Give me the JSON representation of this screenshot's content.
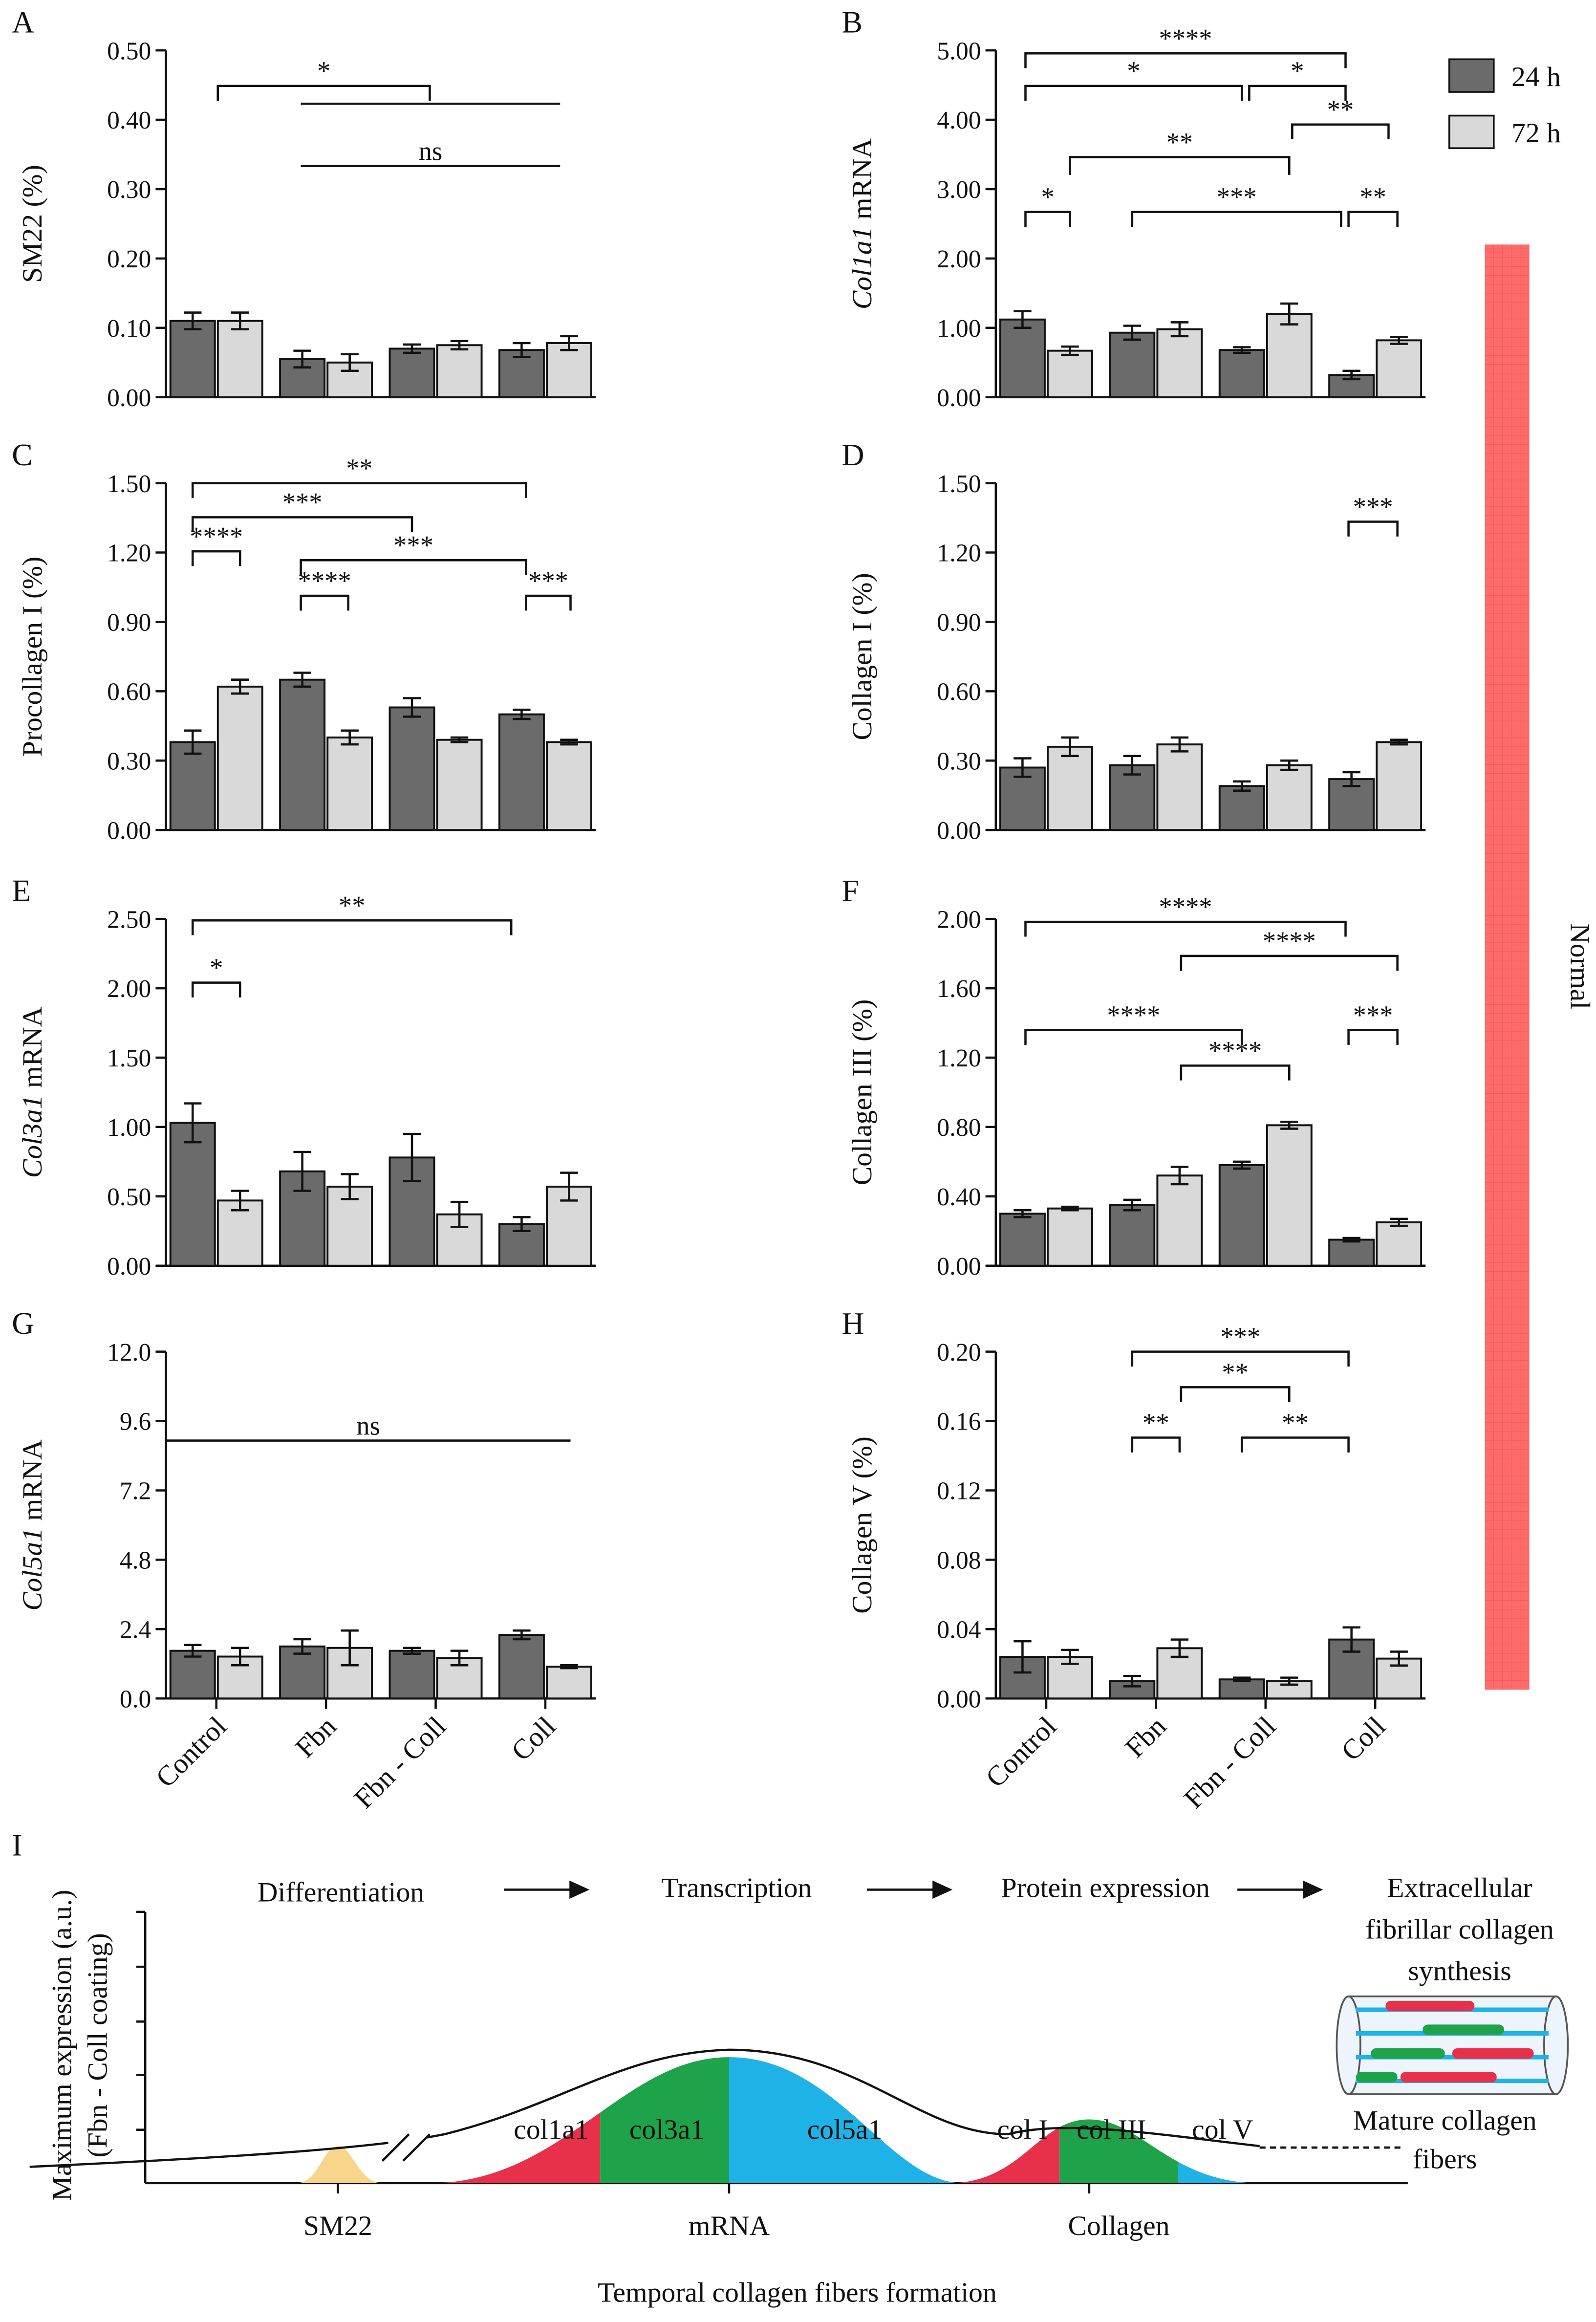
{
  "legend": [
    {
      "name": "24 h",
      "color": "#6b6b6b"
    },
    {
      "name": "72 h",
      "color": "#d9d9d9"
    }
  ],
  "categories": [
    "Control",
    "Fbn",
    "Fbn - Coll",
    "Coll"
  ],
  "side_label": "Normal",
  "chart_data": [
    {
      "type": "bar",
      "label": "A",
      "ylabel": [
        {
          "text": "SM22 (%)"
        }
      ],
      "ylim": [
        0,
        0.5
      ],
      "yticks": [
        {
          "value": 0,
          "label": "0.00"
        },
        {
          "value": 0.1,
          "label": "0.10"
        },
        {
          "value": 0.2,
          "label": "0.20"
        },
        {
          "value": 0.3,
          "label": "0.30"
        },
        {
          "value": 0.4,
          "label": "0.40"
        },
        {
          "value": 0.5,
          "label": "0.50"
        }
      ],
      "series": [
        {
          "values": [
            0.11,
            0.055,
            0.07,
            0.068
          ],
          "errors": [
            0.012,
            0.012,
            0.006,
            0.01
          ]
        },
        {
          "values": [
            0.11,
            0.05,
            0.075,
            0.078
          ],
          "errors": [
            0.012,
            0.012,
            0.006,
            0.01
          ]
        }
      ],
      "annotations": [
        "*",
        "ns"
      ]
    },
    {
      "type": "bar",
      "label": "B",
      "ylabel": [
        {
          "text": "Col1a1",
          "italic": true
        },
        {
          "text": " mRNA"
        }
      ],
      "ylim": [
        0,
        5
      ],
      "yticks": [
        {
          "value": 0,
          "label": "0.00"
        },
        {
          "value": 1,
          "label": "1.00"
        },
        {
          "value": 2,
          "label": "2.00"
        },
        {
          "value": 3,
          "label": "3.00"
        },
        {
          "value": 4,
          "label": "4.00"
        },
        {
          "value": 5,
          "label": "5.00"
        }
      ],
      "series": [
        {
          "values": [
            1.12,
            0.93,
            0.68,
            0.32
          ],
          "errors": [
            0.12,
            0.1,
            0.04,
            0.06
          ]
        },
        {
          "values": [
            0.67,
            0.98,
            1.2,
            0.82
          ],
          "errors": [
            0.06,
            0.1,
            0.15,
            0.05
          ]
        }
      ],
      "annotations": [
        "****",
        "*",
        "*",
        "**",
        "**",
        "*",
        "***",
        "**"
      ]
    },
    {
      "type": "bar",
      "label": "C",
      "ylabel": [
        {
          "text": "Procollagen I (%)"
        }
      ],
      "ylim": [
        0,
        1.5
      ],
      "yticks": [
        {
          "value": 0,
          "label": "0.00"
        },
        {
          "value": 0.3,
          "label": "0.30"
        },
        {
          "value": 0.6,
          "label": "0.60"
        },
        {
          "value": 0.9,
          "label": "0.90"
        },
        {
          "value": 1.2,
          "label": "1.20"
        },
        {
          "value": 1.5,
          "label": "1.50"
        }
      ],
      "series": [
        {
          "values": [
            0.38,
            0.65,
            0.53,
            0.5
          ],
          "errors": [
            0.05,
            0.03,
            0.04,
            0.02
          ]
        },
        {
          "values": [
            0.62,
            0.4,
            0.39,
            0.38
          ],
          "errors": [
            0.03,
            0.03,
            0.01,
            0.01
          ]
        }
      ],
      "annotations": [
        "**",
        "***",
        "****",
        "***",
        "****",
        "***"
      ]
    },
    {
      "type": "bar",
      "label": "D",
      "ylabel": [
        {
          "text": "Collagen I (%)"
        }
      ],
      "ylim": [
        0,
        1.5
      ],
      "yticks": [
        {
          "value": 0,
          "label": "0.00"
        },
        {
          "value": 0.3,
          "label": "0.30"
        },
        {
          "value": 0.6,
          "label": "0.60"
        },
        {
          "value": 0.9,
          "label": "0.90"
        },
        {
          "value": 1.2,
          "label": "1.20"
        },
        {
          "value": 1.5,
          "label": "1.50"
        }
      ],
      "series": [
        {
          "values": [
            0.27,
            0.28,
            0.19,
            0.22
          ],
          "errors": [
            0.04,
            0.04,
            0.02,
            0.03
          ]
        },
        {
          "values": [
            0.36,
            0.37,
            0.28,
            0.38
          ],
          "errors": [
            0.04,
            0.03,
            0.02,
            0.01
          ]
        }
      ],
      "annotations": [
        "***"
      ]
    },
    {
      "type": "bar",
      "label": "E",
      "ylabel": [
        {
          "text": "Col3a1",
          "italic": true
        },
        {
          "text": " mRNA"
        }
      ],
      "ylim": [
        0,
        2.5
      ],
      "yticks": [
        {
          "value": 0,
          "label": "0.00"
        },
        {
          "value": 0.5,
          "label": "0.50"
        },
        {
          "value": 1,
          "label": "1.00"
        },
        {
          "value": 1.5,
          "label": "1.50"
        },
        {
          "value": 2,
          "label": "2.00"
        },
        {
          "value": 2.5,
          "label": "2.50"
        }
      ],
      "series": [
        {
          "values": [
            1.03,
            0.68,
            0.78,
            0.3
          ],
          "errors": [
            0.14,
            0.14,
            0.17,
            0.05
          ]
        },
        {
          "values": [
            0.47,
            0.57,
            0.37,
            0.57
          ],
          "errors": [
            0.07,
            0.09,
            0.09,
            0.1
          ]
        }
      ],
      "annotations": [
        "*",
        "**"
      ]
    },
    {
      "type": "bar",
      "label": "F",
      "ylabel": [
        {
          "text": "Collagen III (%)"
        }
      ],
      "ylim": [
        0,
        2
      ],
      "yticks": [
        {
          "value": 0,
          "label": "0.00"
        },
        {
          "value": 0.4,
          "label": "0.40"
        },
        {
          "value": 0.8,
          "label": "0.80"
        },
        {
          "value": 1.2,
          "label": "1.20"
        },
        {
          "value": 1.6,
          "label": "1.60"
        },
        {
          "value": 2,
          "label": "2.00"
        }
      ],
      "series": [
        {
          "values": [
            0.3,
            0.35,
            0.58,
            0.15
          ],
          "errors": [
            0.02,
            0.03,
            0.02,
            0.01
          ]
        },
        {
          "values": [
            0.33,
            0.52,
            0.81,
            0.25
          ],
          "errors": [
            0.01,
            0.05,
            0.02,
            0.02
          ]
        }
      ],
      "annotations": [
        "****",
        "****",
        "****",
        "****",
        "***"
      ]
    },
    {
      "type": "bar",
      "label": "G",
      "ylabel": [
        {
          "text": "Col5a1",
          "italic": true
        },
        {
          "text": " mRNA"
        }
      ],
      "ylim": [
        0,
        12
      ],
      "yticks": [
        {
          "value": 0,
          "label": "0.0"
        },
        {
          "value": 2.4,
          "label": "2.4"
        },
        {
          "value": 4.8,
          "label": "4.8"
        },
        {
          "value": 7.2,
          "label": "7.2"
        },
        {
          "value": 9.6,
          "label": "9.6"
        },
        {
          "value": 12,
          "label": "12.0"
        }
      ],
      "series": [
        {
          "values": [
            1.65,
            1.8,
            1.65,
            2.2
          ],
          "errors": [
            0.2,
            0.25,
            0.1,
            0.15
          ]
        },
        {
          "values": [
            1.45,
            1.75,
            1.4,
            1.1
          ],
          "errors": [
            0.3,
            0.6,
            0.25,
            0.05
          ]
        }
      ],
      "annotations": [
        "ns"
      ]
    },
    {
      "type": "bar",
      "label": "H",
      "ylabel": [
        {
          "text": "Collagen V (%)"
        }
      ],
      "ylim": [
        0,
        0.2
      ],
      "yticks": [
        {
          "value": 0,
          "label": "0.00"
        },
        {
          "value": 0.04,
          "label": "0.04"
        },
        {
          "value": 0.08,
          "label": "0.08"
        },
        {
          "value": 0.12,
          "label": "0.12"
        },
        {
          "value": 0.16,
          "label": "0.16"
        },
        {
          "value": 0.2,
          "label": "0.20"
        }
      ],
      "series": [
        {
          "values": [
            0.024,
            0.01,
            0.011,
            0.034
          ],
          "errors": [
            0.009,
            0.003,
            0.001,
            0.007
          ]
        },
        {
          "values": [
            0.024,
            0.029,
            0.01,
            0.023
          ],
          "errors": [
            0.004,
            0.005,
            0.002,
            0.004
          ]
        }
      ],
      "annotations": [
        "***",
        "**",
        "**",
        "**"
      ]
    }
  ],
  "diagram": {
    "label": "I",
    "stages": [
      "Differentiation",
      "Transcription",
      "Protein expression"
    ],
    "final_stage": [
      "Extracellular",
      "fibrillar collagen",
      "synthesis"
    ],
    "ylabel": [
      "Maximum expression (a.u.)",
      "(Fbn - Coll coating)"
    ],
    "genes": [
      "col1a1",
      "col3a1",
      "col5a1"
    ],
    "proteins": [
      "col I",
      "col III",
      "col V"
    ],
    "groups": [
      "SM22",
      "mRNA",
      "Collagen"
    ],
    "fiber_label": [
      "Mature collagen",
      "fibers"
    ],
    "xlabel": "Temporal collagen fibers formation"
  }
}
